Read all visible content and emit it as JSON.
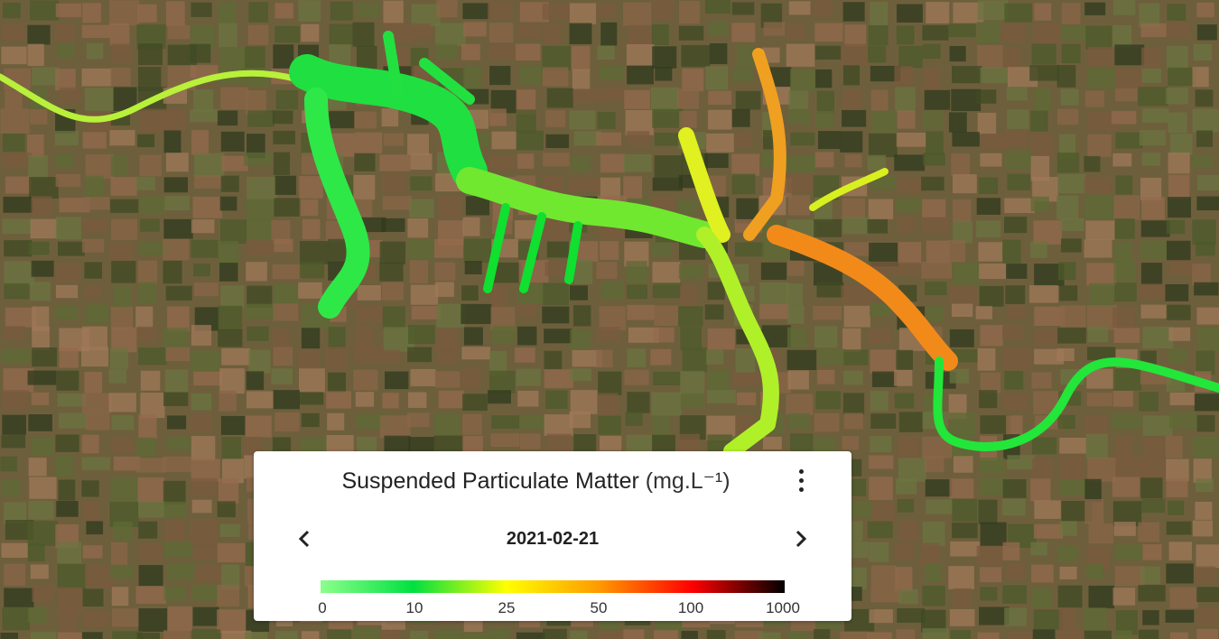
{
  "map": {
    "legend": {
      "title": "Suspended Particulate Matter",
      "unit": "(mg.L⁻¹)",
      "date": "2021-02-21",
      "scale": {
        "ticks": [
          0,
          10,
          25,
          50,
          100,
          1000
        ],
        "colors": [
          "#8cff8c",
          "#00e040",
          "#ffff00",
          "#ff9a00",
          "#ff0000",
          "#000000"
        ]
      }
    }
  }
}
